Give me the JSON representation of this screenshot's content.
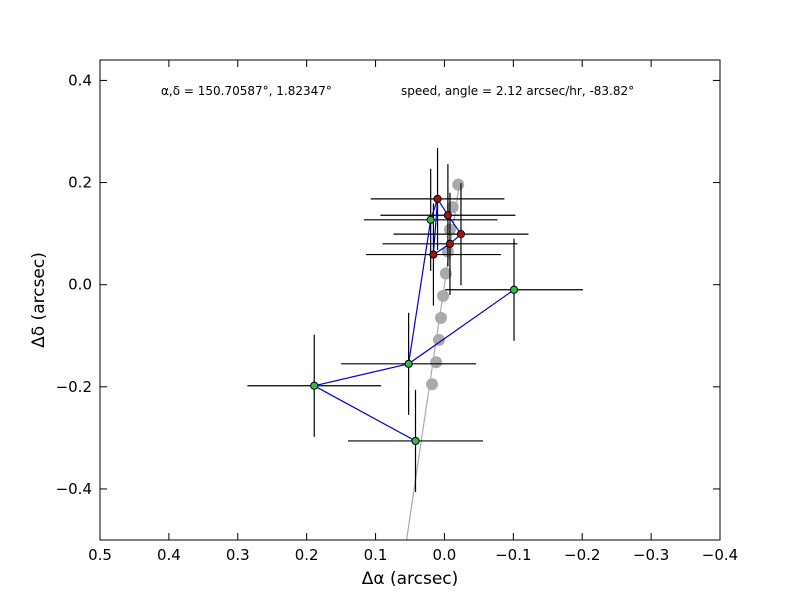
{
  "chart_data": {
    "type": "scatter",
    "title": "",
    "annotations": [
      "α,δ = 150.70587°, 1.82347°",
      "speed, angle = 2.12 arcsec/hr, -83.82°"
    ],
    "xlabel": "Δα (arcsec)",
    "ylabel": "Δδ (arcsec)",
    "xlim": [
      0.5,
      -0.4
    ],
    "ylim": [
      -0.5,
      0.44
    ],
    "xticks": [
      "0.5",
      "0.4",
      "0.3",
      "0.2",
      "0.1",
      "0.0",
      "−0.1",
      "−0.2",
      "−0.3",
      "−0.4"
    ],
    "yticks": [
      "−0.4",
      "−0.2",
      "0.0",
      "0.2",
      "0.4"
    ],
    "grid": false,
    "legend": "none",
    "colors": {
      "model": "#aaaaaa",
      "path": "#0000cc",
      "green": "#33bb44",
      "red": "#aa1111",
      "error": "#000000"
    },
    "model_track": {
      "line": [
        [
          0.055,
          -0.5
        ],
        [
          -0.022,
          0.2
        ]
      ],
      "points": [
        [
          0.018,
          -0.195
        ],
        [
          0.012,
          -0.152
        ],
        [
          0.008,
          -0.108
        ],
        [
          0.005,
          -0.065
        ],
        [
          0.002,
          -0.022
        ],
        [
          -0.002,
          0.022
        ],
        [
          -0.005,
          0.065
        ],
        [
          -0.008,
          0.108
        ],
        [
          -0.012,
          0.152
        ],
        [
          -0.02,
          0.196
        ]
      ]
    },
    "observations": [
      {
        "x": 0.042,
        "y": -0.306,
        "xerr": 0.098,
        "yerr": 0.1,
        "color": "green"
      },
      {
        "x": 0.189,
        "y": -0.198,
        "xerr": 0.097,
        "yerr": 0.1,
        "color": "green"
      },
      {
        "x": 0.052,
        "y": -0.155,
        "xerr": 0.098,
        "yerr": 0.1,
        "color": "green"
      },
      {
        "x": -0.101,
        "y": -0.01,
        "xerr": 0.1,
        "yerr": 0.1,
        "color": "green"
      },
      {
        "x": 0.02,
        "y": 0.127,
        "xerr": 0.097,
        "yerr": 0.1,
        "color": "green"
      },
      {
        "x": 0.01,
        "y": 0.168,
        "xerr": 0.097,
        "yerr": 0.1,
        "color": "red"
      },
      {
        "x": -0.005,
        "y": 0.136,
        "xerr": 0.098,
        "yerr": 0.1,
        "color": "red"
      },
      {
        "x": -0.024,
        "y": 0.099,
        "xerr": 0.098,
        "yerr": 0.1,
        "color": "red"
      },
      {
        "x": -0.008,
        "y": 0.08,
        "xerr": 0.098,
        "yerr": 0.1,
        "color": "red"
      },
      {
        "x": 0.016,
        "y": 0.059,
        "xerr": 0.098,
        "yerr": 0.1,
        "color": "red"
      }
    ],
    "path_order": [
      [
        0.052,
        -0.155
      ],
      [
        0.189,
        -0.198
      ],
      [
        0.042,
        -0.306
      ],
      [
        0.189,
        -0.198
      ],
      [
        0.052,
        -0.155
      ],
      [
        -0.101,
        -0.01
      ],
      [
        0.052,
        -0.155
      ],
      [
        0.02,
        0.127
      ],
      [
        0.01,
        0.168
      ],
      [
        0.016,
        0.059
      ],
      [
        -0.008,
        0.08
      ],
      [
        -0.024,
        0.099
      ],
      [
        -0.005,
        0.136
      ],
      [
        0.01,
        0.168
      ]
    ]
  }
}
